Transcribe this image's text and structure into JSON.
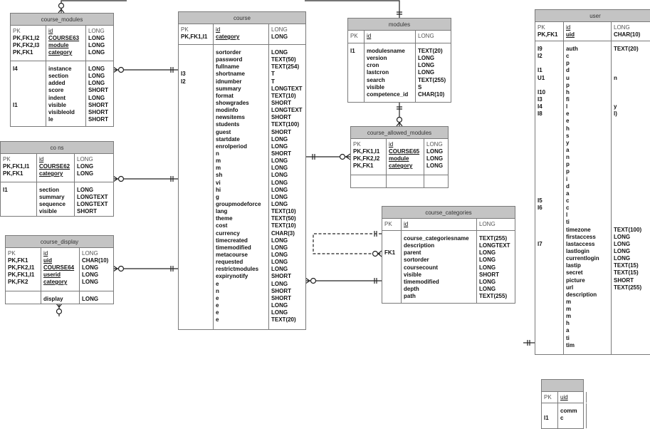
{
  "colors": {
    "header": "#c4c4c4",
    "border": "#7a7a7a",
    "line": "#222222"
  },
  "tables": [
    {
      "id": "course_modules",
      "title": "course_modules",
      "pk": [
        [
          "PK",
          "id",
          "LONG"
        ],
        [
          "PK,FK1,I2",
          "COURSE63",
          "LONG"
        ],
        [
          "PK,FK2,I3",
          "module",
          "LONG"
        ],
        [
          "PK,FK1",
          "category",
          "LONG"
        ]
      ],
      "body": [
        [
          "I4",
          "instance",
          "LONG"
        ],
        [
          "",
          "section",
          "LONG"
        ],
        [
          "",
          "added",
          "LONG"
        ],
        [
          "",
          "score",
          "SHORT"
        ],
        [
          "",
          "indent",
          "LONG"
        ],
        [
          "I1",
          "visible",
          "SHORT"
        ],
        [
          "",
          "visibleold",
          "SHORT"
        ],
        [
          "",
          "le",
          "SHORT"
        ]
      ]
    },
    {
      "id": "course_sections",
      "title": "co            ns",
      "pk": [
        [
          "PK",
          "id",
          "LONG"
        ],
        [
          "PK,FK1,I1",
          "COURSE62",
          "LONG"
        ],
        [
          "PK,FK1",
          "category",
          "LONG"
        ]
      ],
      "body": [
        [
          "I1",
          "section",
          "LONG"
        ],
        [
          "",
          "summary",
          "LONGTEXT"
        ],
        [
          "",
          "sequence",
          "LONGTEXT"
        ],
        [
          "",
          "visible",
          "SHORT"
        ]
      ]
    },
    {
      "id": "course_display",
      "title": "course_display",
      "pk": [
        [
          "PK",
          "id",
          "LONG"
        ],
        [
          "PK,FK1",
          "uid",
          "CHAR(10)"
        ],
        [
          "PK,FK2,I1",
          "COURSE64",
          "LONG"
        ],
        [
          "PK,FK1,I1",
          "userid",
          "LONG"
        ],
        [
          "PK,FK2",
          "category",
          "LONG"
        ]
      ],
      "body": [
        [
          "",
          "display",
          "LONG"
        ]
      ]
    },
    {
      "id": "course",
      "title": "course",
      "pk": [
        [
          "PK",
          "id",
          "LONG"
        ],
        [
          "PK,FK1,I1",
          "category",
          "LONG"
        ]
      ],
      "body": [
        [
          "",
          "sortorder",
          "LONG"
        ],
        [
          "",
          "password",
          "TEXT(50)"
        ],
        [
          "",
          "fullname",
          "TEXT(254)"
        ],
        [
          "I3",
          "shortname",
          "T"
        ],
        [
          "I2",
          "idnumber",
          "T"
        ],
        [
          "",
          "summary",
          "LONGTEXT"
        ],
        [
          "",
          "format",
          "TEXT(10)"
        ],
        [
          "",
          "showgrades",
          "SHORT"
        ],
        [
          "",
          "modinfo",
          "LONGTEXT"
        ],
        [
          "",
          "newsitems",
          "SHORT"
        ],
        [
          "",
          "students",
          "TEXT(100)"
        ],
        [
          "",
          "guest",
          "SHORT"
        ],
        [
          "",
          "startdate",
          "LONG"
        ],
        [
          "",
          "enrolperiod",
          "LONG"
        ],
        [
          "",
          "n",
          "SHORT"
        ],
        [
          "",
          "m",
          "LONG"
        ],
        [
          "",
          "m",
          "LONG"
        ],
        [
          "",
          "sh",
          "LONG"
        ],
        [
          "",
          "vi",
          "LONG"
        ],
        [
          "",
          "hi",
          "LONG"
        ],
        [
          "",
          "g",
          "LONG"
        ],
        [
          "",
          "groupmodeforce",
          "LONG"
        ],
        [
          "",
          "lang",
          "TEXT(10)"
        ],
        [
          "",
          "theme",
          "TEXT(50)"
        ],
        [
          "",
          "cost",
          "TEXT(10)"
        ],
        [
          "",
          "currency",
          "CHAR(3)"
        ],
        [
          "",
          "timecreated",
          "LONG"
        ],
        [
          "",
          "timemodified",
          "LONG"
        ],
        [
          "",
          "metacourse",
          "LONG"
        ],
        [
          "",
          "requested",
          "LONG"
        ],
        [
          "",
          "restrictmodules",
          "LONG"
        ],
        [
          "",
          "expirynotify",
          "SHORT"
        ],
        [
          "",
          "e",
          "LONG"
        ],
        [
          "",
          "n",
          "SHORT"
        ],
        [
          "",
          "e",
          "SHORT"
        ],
        [
          "",
          "e",
          "LONG"
        ],
        [
          "",
          "e",
          "LONG"
        ],
        [
          "",
          "e",
          "TEXT(20)"
        ]
      ]
    },
    {
      "id": "modules",
      "title": "modules",
      "pk": [
        [
          "PK",
          "id",
          "LONG"
        ]
      ],
      "body": [
        [
          "I1",
          "modulesname",
          "TEXT(20)"
        ],
        [
          "",
          "version",
          "LONG"
        ],
        [
          "",
          "cron",
          "LONG"
        ],
        [
          "",
          "lastcron",
          "LONG"
        ],
        [
          "",
          "search",
          "TEXT(255)"
        ],
        [
          "",
          "visible",
          "S"
        ],
        [
          "",
          "competence_id",
          "CHAR(10)"
        ]
      ]
    },
    {
      "id": "course_allowed_modules",
      "title": "course_allowed_modules",
      "pk": [
        [
          "PK",
          "id",
          "LONG"
        ],
        [
          "PK,FK1,I1",
          "COURSE65",
          "LONG"
        ],
        [
          "PK,FK2,I2",
          "module",
          "LONG"
        ],
        [
          "PK,FK1",
          "category",
          "LONG"
        ]
      ],
      "body": []
    },
    {
      "id": "course_categories",
      "title": "course_categories",
      "pk": [
        [
          "PK",
          "id",
          "LONG"
        ]
      ],
      "body": [
        [
          "",
          "course_categoriesname",
          "TEXT(255)"
        ],
        [
          "",
          "description",
          "LONGTEXT"
        ],
        [
          "FK1",
          "parent",
          "LONG"
        ],
        [
          "",
          "sortorder",
          "LONG"
        ],
        [
          "",
          "coursecount",
          "LONG"
        ],
        [
          "",
          "visible",
          "SHORT"
        ],
        [
          "",
          "timemodified",
          "LONG"
        ],
        [
          "",
          "depth",
          "LONG"
        ],
        [
          "",
          "path",
          "TEXT(255)"
        ]
      ]
    },
    {
      "id": "user",
      "title": "user",
      "pk": [
        [
          "PK",
          "id",
          "LONG"
        ],
        [
          "PK,FK1",
          "uid",
          "CHAR(10)"
        ]
      ],
      "body": [
        [
          "I9",
          "auth",
          "TEXT(20)"
        ],
        [
          "I2",
          "c",
          ""
        ],
        [
          "",
          "p",
          ""
        ],
        [
          "I1",
          "d",
          ""
        ],
        [
          "U1",
          "u",
          "n"
        ],
        [
          "",
          "p",
          ""
        ],
        [
          "I10",
          "h",
          ""
        ],
        [
          "I3",
          "fi",
          ""
        ],
        [
          "I4",
          "l",
          "y"
        ],
        [
          "I8",
          "e",
          "l)"
        ],
        [
          "",
          "e",
          ""
        ],
        [
          "",
          "h",
          ""
        ],
        [
          "",
          "s",
          ""
        ],
        [
          "",
          "y",
          ""
        ],
        [
          "",
          "a",
          ""
        ],
        [
          "",
          "n",
          ""
        ],
        [
          "",
          "p",
          ""
        ],
        [
          "",
          "p",
          ""
        ],
        [
          "",
          "i",
          ""
        ],
        [
          "",
          "d",
          ""
        ],
        [
          "",
          "a",
          ""
        ],
        [
          "I5",
          "c",
          ""
        ],
        [
          "I6",
          "c",
          ""
        ],
        [
          "",
          "l",
          ""
        ],
        [
          "",
          "ti",
          ""
        ],
        [
          "",
          "timezone",
          "TEXT(100)"
        ],
        [
          "",
          "firstaccess",
          "LONG"
        ],
        [
          "I7",
          "lastaccess",
          "LONG"
        ],
        [
          "",
          "lastlogin",
          "LONG"
        ],
        [
          "",
          "currentlogin",
          "LONG"
        ],
        [
          "",
          "lastip",
          "TEXT(15)"
        ],
        [
          "",
          "secret",
          "TEXT(15)"
        ],
        [
          "",
          "picture",
          "SHORT"
        ],
        [
          "",
          "url",
          "TEXT(255)"
        ],
        [
          "",
          "description",
          ""
        ],
        [
          "",
          "m",
          ""
        ],
        [
          "",
          "m",
          ""
        ],
        [
          "",
          "m",
          ""
        ],
        [
          "",
          "h",
          ""
        ],
        [
          "",
          "a",
          ""
        ],
        [
          "",
          "ti",
          ""
        ],
        [
          "",
          "tim",
          ""
        ]
      ]
    },
    {
      "id": "user_extra",
      "title": "",
      "pk": [
        [
          "PK",
          "uid",
          ""
        ]
      ],
      "body": [
        [
          "",
          "comm",
          ""
        ],
        [
          "I1",
          "c",
          ""
        ]
      ]
    }
  ]
}
